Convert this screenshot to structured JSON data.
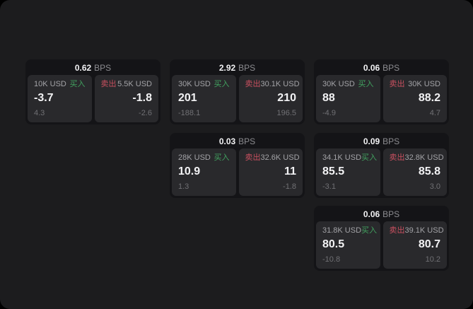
{
  "labels": {
    "bps": "BPS",
    "buy": "买入",
    "sell": "卖出"
  },
  "colors": {
    "outer_background": "#000000",
    "page_background": "#1c1c1e",
    "card_background": "#141417",
    "panel_background": "#29292c",
    "buy_green": "#41a15f",
    "sell_red": "#c8505f",
    "value_white": "#f2f2f4",
    "label_gray": "#a3a3a7",
    "sub_gray": "#707074"
  },
  "cards": [
    {
      "bps": "0.62",
      "buy": {
        "size": "10K USD",
        "value": "-3.7",
        "sub": "4.3"
      },
      "sell": {
        "size": "5.5K USD",
        "value": "-1.8",
        "sub": "-2.6"
      }
    },
    {
      "bps": "2.92",
      "buy": {
        "size": "30K USD",
        "value": "201",
        "sub": "-188.1"
      },
      "sell": {
        "size": "30.1K USD",
        "value": "210",
        "sub": "196.5"
      }
    },
    {
      "bps": "0.06",
      "buy": {
        "size": "30K USD",
        "value": "88",
        "sub": "-4.9"
      },
      "sell": {
        "size": "30K USD",
        "value": "88.2",
        "sub": "4.7"
      }
    },
    {
      "bps": "0.03",
      "buy": {
        "size": "28K USD",
        "value": "10.9",
        "sub": "1.3"
      },
      "sell": {
        "size": "32.6K USD",
        "value": "11",
        "sub": "-1.8"
      }
    },
    {
      "bps": "0.09",
      "buy": {
        "size": "34.1K USD",
        "value": "85.5",
        "sub": "-3.1"
      },
      "sell": {
        "size": "32.8K USD",
        "value": "85.8",
        "sub": "3.0"
      }
    },
    {
      "bps": "0.06",
      "buy": {
        "size": "31.8K USD",
        "value": "80.5",
        "sub": "-10.8"
      },
      "sell": {
        "size": "39.1K USD",
        "value": "80.7",
        "sub": "10.2"
      }
    }
  ]
}
